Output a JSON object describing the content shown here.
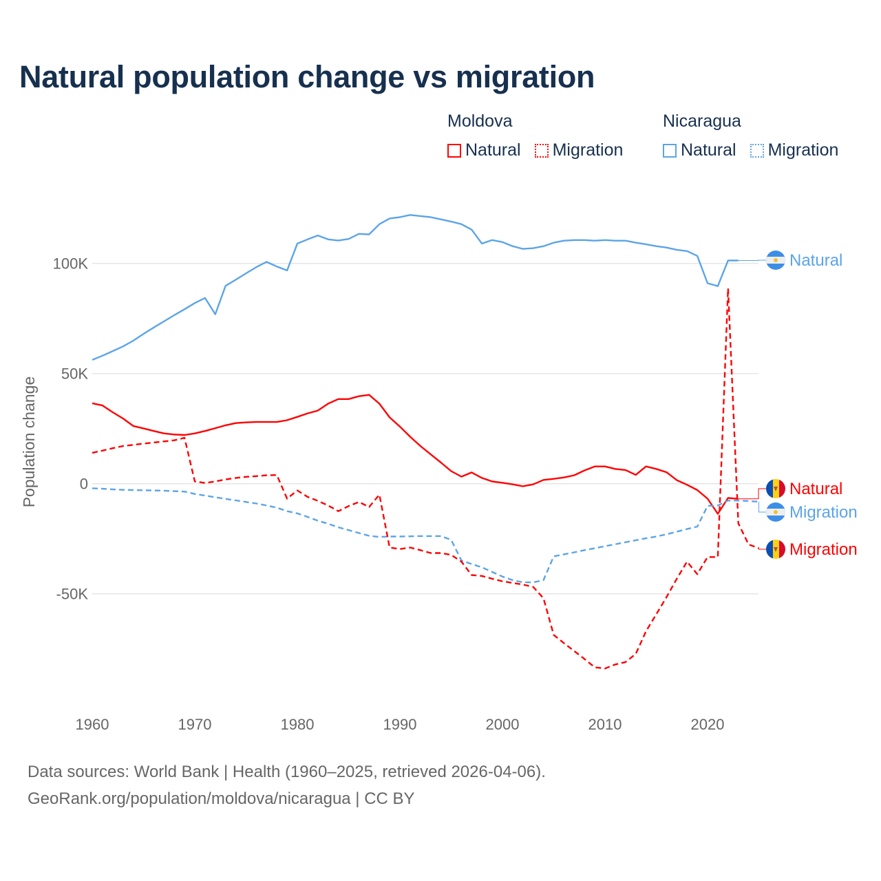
{
  "title": "Natural population change vs migration",
  "legend": {
    "groups": [
      {
        "country": "Moldova",
        "items": [
          {
            "label": "Natural",
            "style": "solid"
          },
          {
            "label": "Migration",
            "style": "dotted"
          }
        ],
        "color": "#ff0000"
      },
      {
        "country": "Nicaragua",
        "items": [
          {
            "label": "Natural",
            "style": "solid"
          },
          {
            "label": "Migration",
            "style": "dotted"
          }
        ],
        "color": "#5ba4e8"
      }
    ]
  },
  "footer": {
    "line1": "Data sources: World Bank | Health (1960–2025, retrieved 2026-04-06).",
    "line2": "GeoRank.org/population/moldova/nicaragua | CC BY"
  },
  "chart_data": {
    "type": "line",
    "title": "Natural population change vs migration",
    "xlabel": "",
    "ylabel": "Population change",
    "xlim": [
      1960,
      2025
    ],
    "ylim": [
      -100000,
      125000
    ],
    "grid": true,
    "legend_position": "top-right",
    "x_ticks": [
      {
        "value": 1960,
        "label": "1960"
      },
      {
        "value": 1970,
        "label": "1970"
      },
      {
        "value": 1980,
        "label": "1980"
      },
      {
        "value": 1990,
        "label": "1990"
      },
      {
        "value": 2000,
        "label": "2000"
      },
      {
        "value": 2010,
        "label": "2010"
      },
      {
        "value": 2020,
        "label": "2020"
      }
    ],
    "y_ticks": [
      {
        "value": 100000,
        "label": "100K"
      },
      {
        "value": 50000,
        "label": "50K"
      },
      {
        "value": 0,
        "label": "0"
      },
      {
        "value": -50000,
        "label": "-50K"
      }
    ],
    "x_start": 1960,
    "units": "thousands",
    "series": [
      {
        "name": "Nicaragua Natural",
        "country": "Nicaragua",
        "label": "Natural",
        "color": "#5ba4e8",
        "dashed": false,
        "flag": "nicaragua",
        "values": [
          56.2,
          58.1,
          60.2,
          62.3,
          64.9,
          68,
          70.9,
          73.7,
          76.5,
          79.2,
          82,
          84.3,
          76.9,
          89.8,
          92.6,
          95.5,
          98.3,
          100.7,
          98.6,
          96.8,
          109,
          110.9,
          112.7,
          110.9,
          110.4,
          111.1,
          113.4,
          113.2,
          117.8,
          120.4,
          121,
          122,
          121.5,
          121,
          120,
          119,
          117.8,
          115.3,
          109,
          110.6,
          109.7,
          107.8,
          106.6,
          106.9,
          107.8,
          109.4,
          110.3,
          110.6,
          110.6,
          110.3,
          110.6,
          110.3,
          110.3,
          109.4,
          108.7,
          107.8,
          107.2,
          106.2,
          105.6,
          103.4,
          91,
          89.7,
          101.3,
          101.3
        ]
      },
      {
        "name": "Moldova Natural",
        "country": "Moldova",
        "label": "Natural",
        "color": "#ff0000",
        "dashed": false,
        "flag": "moldova",
        "values": [
          36.5,
          35.5,
          32.4,
          29.6,
          26.2,
          25.1,
          23.9,
          22.8,
          22.3,
          22.1,
          22.8,
          23.9,
          25.2,
          26.5,
          27.5,
          27.8,
          28,
          28,
          28,
          28.8,
          30.3,
          31.9,
          33.2,
          36.3,
          38.4,
          38.4,
          39.7,
          40.3,
          36.3,
          30.1,
          25.9,
          21.3,
          17.1,
          13.3,
          9.6,
          5.7,
          3.2,
          5.1,
          2.6,
          1.0,
          0.4,
          -0.3,
          -1.2,
          -0.3,
          1.7,
          2.2,
          2.8,
          3.8,
          6,
          7.8,
          7.8,
          6.7,
          6.2,
          4,
          7.8,
          6.7,
          5.2,
          1.6,
          -0.5,
          -2.9,
          -6.8,
          -13.7,
          -6.5,
          -6.9
        ]
      },
      {
        "name": "Nicaragua Migration",
        "country": "Nicaragua",
        "label": "Migration",
        "color": "#5ba4e8",
        "dashed": true,
        "flag": "nicaragua",
        "values": [
          -2.1,
          -2.3,
          -2.6,
          -2.8,
          -2.9,
          -3.0,
          -3.1,
          -3.2,
          -3.4,
          -3.6,
          -4.7,
          -5.4,
          -6.2,
          -6.9,
          -7.6,
          -8.3,
          -9,
          -9.9,
          -10.9,
          -12.5,
          -13.5,
          -15.1,
          -16.8,
          -18.2,
          -19.8,
          -21.1,
          -22.4,
          -23.7,
          -24.2,
          -24,
          -24,
          -23.9,
          -23.8,
          -23.8,
          -23.8,
          -25.5,
          -34.9,
          -36.5,
          -38,
          -40.1,
          -42.2,
          -43.8,
          -44.8,
          -44.8,
          -43.8,
          -33,
          -32.1,
          -31.2,
          -30.2,
          -29.3,
          -28.4,
          -27.5,
          -26.6,
          -25.7,
          -24.8,
          -24,
          -23,
          -21.8,
          -20.6,
          -19.5,
          -10.1,
          -9.9,
          -7.7,
          -7.7,
          -7.9,
          -8.2
        ]
      },
      {
        "name": "Moldova Migration",
        "country": "Moldova",
        "label": "Migration",
        "color": "#ff0000",
        "dashed": true,
        "flag": "moldova",
        "values": [
          14,
          15,
          16.1,
          17.1,
          17.6,
          18.2,
          18.7,
          19.2,
          19.7,
          20.8,
          1.0,
          0.3,
          1.0,
          1.9,
          2.6,
          3.1,
          3.4,
          3.8,
          3.9,
          -6.8,
          -3.1,
          -6,
          -7.8,
          -9.9,
          -12.5,
          -10.2,
          -8.3,
          -10.6,
          -5,
          -29,
          -29.7,
          -29,
          -30.2,
          -31.5,
          -31.5,
          -32.3,
          -35.4,
          -41.5,
          -41.9,
          -43.2,
          -44.3,
          -45.1,
          -45.8,
          -46.9,
          -52,
          -68.7,
          -72.4,
          -76,
          -79.6,
          -83.4,
          -83.9,
          -82.1,
          -81,
          -77.3,
          -67,
          -59.3,
          -51.5,
          -43.2,
          -35.4,
          -41.1,
          -33.3,
          -33.3,
          88.7,
          -18,
          -27.6,
          -29.3
        ]
      }
    ]
  }
}
